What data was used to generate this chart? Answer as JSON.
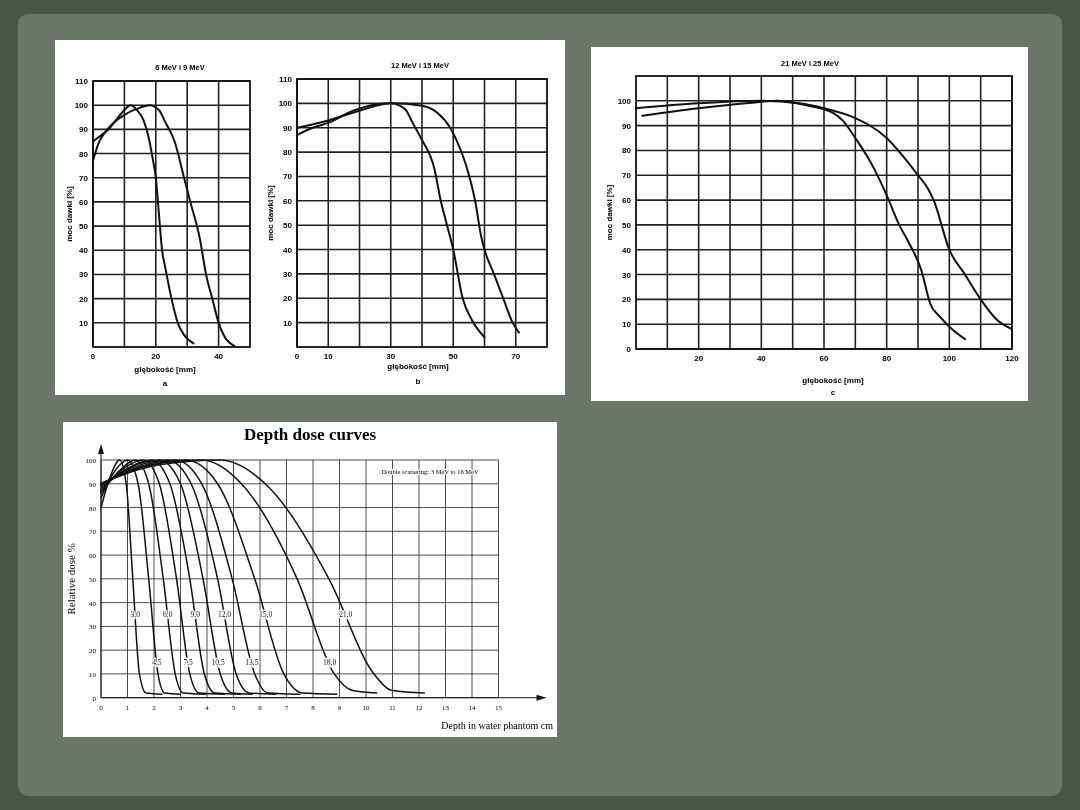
{
  "chart_data": [
    {
      "type": "line",
      "title": "6 MeV i 9 MeV",
      "xlabel": "głębokość [mm]",
      "ylabel": "moc dawki [%]",
      "annotations": [
        "a"
      ],
      "xlim": [
        0,
        50
      ],
      "ylim": [
        0,
        110
      ],
      "xticks": [
        0,
        {
          "value": 10,
          "label": null
        },
        20,
        {
          "value": 30,
          "label": null
        },
        40
      ],
      "yticks": [
        10,
        20,
        30,
        40,
        50,
        60,
        70,
        80,
        90,
        100,
        110
      ],
      "grid": true,
      "series": [
        {
          "color": "#111111",
          "x": [
            0,
            3,
            5,
            8,
            10,
            12,
            14,
            16,
            18,
            19,
            20,
            21,
            22,
            23,
            25,
            27,
            29,
            32
          ],
          "values": [
            85,
            88,
            90,
            95,
            98,
            100,
            98,
            94,
            85,
            78,
            70,
            55,
            40,
            33,
            20,
            10,
            5,
            1.5
          ]
        },
        {
          "color": "#111111",
          "x": [
            0,
            2,
            4,
            6,
            10,
            15,
            18,
            21,
            23,
            26,
            29,
            31,
            34,
            36,
            38,
            40,
            42,
            45
          ],
          "values": [
            77,
            85,
            89,
            92,
            96,
            99,
            100,
            98,
            93,
            85,
            70,
            60,
            45,
            30,
            20,
            10,
            4,
            0.5
          ]
        }
      ]
    },
    {
      "type": "line",
      "title": "12 MeV i 15 MeV",
      "xlabel": "głębokość [mm]",
      "ylabel": "moc dawki [%]",
      "annotations": [
        "b"
      ],
      "xlim": [
        0,
        80
      ],
      "ylim": [
        0,
        110
      ],
      "xticks": [
        0,
        10,
        {
          "value": 20,
          "label": null
        },
        30,
        {
          "value": 40,
          "label": null
        },
        50,
        {
          "value": 60,
          "label": null
        },
        70
      ],
      "yticks": [
        10,
        20,
        30,
        40,
        50,
        60,
        70,
        80,
        90,
        100,
        110
      ],
      "grid": true,
      "series": [
        {
          "color": "#111111",
          "x": [
            0,
            10,
            20,
            30,
            33,
            35,
            37,
            40,
            44,
            46,
            48,
            50,
            53,
            56,
            60
          ],
          "values": [
            90,
            93,
            97,
            100,
            99,
            97,
            92,
            85,
            73,
            60,
            50,
            40,
            20,
            11,
            4
          ]
        },
        {
          "color": "#111111",
          "x": [
            0,
            5,
            10,
            18,
            30,
            40,
            45,
            49,
            51,
            54,
            57,
            59,
            60,
            63,
            66,
            69,
            71
          ],
          "values": [
            87,
            90,
            92,
            97,
            100,
            99,
            96,
            90,
            85,
            75,
            60,
            45,
            40,
            30,
            20,
            10,
            6
          ]
        }
      ]
    },
    {
      "type": "line",
      "title": "21 MeV i 25 MeV",
      "xlabel": "głębokość [mm]",
      "ylabel": "moc dawki [%]",
      "annotations": [
        "c"
      ],
      "xlim": [
        0,
        120
      ],
      "ylim": [
        0,
        110
      ],
      "xticks": [
        {
          "value": 10,
          "label": null
        },
        20,
        {
          "value": 30,
          "label": null
        },
        40,
        {
          "value": 50,
          "label": null
        },
        60,
        {
          "value": 70,
          "label": null
        },
        80,
        {
          "value": 90,
          "label": null
        },
        100,
        {
          "value": 110,
          "label": null
        },
        120
      ],
      "yticks": [
        0,
        10,
        20,
        30,
        40,
        50,
        60,
        70,
        80,
        90,
        100
      ],
      "grid": true,
      "series": [
        {
          "color": "#111111",
          "x": [
            2,
            20,
            35,
            45,
            55,
            63,
            66,
            70,
            75,
            80,
            84,
            87,
            91,
            94,
            97,
            100,
            105
          ],
          "values": [
            94,
            97,
            99,
            100,
            98,
            95,
            92,
            85,
            75,
            62,
            50,
            43,
            32,
            18,
            13,
            9,
            4
          ]
        },
        {
          "color": "#111111",
          "x": [
            0,
            20,
            40,
            52,
            60,
            70,
            80,
            85,
            90,
            93,
            95,
            100,
            105,
            110,
            115,
            120
          ],
          "values": [
            97,
            99,
            100,
            99,
            97,
            93,
            85,
            78,
            70,
            65,
            60,
            40,
            30,
            20,
            12,
            8
          ]
        }
      ]
    },
    {
      "type": "line",
      "title": "Depth dose curves",
      "xlabel": "Depth in water phantom cm",
      "ylabel": "Relative dose %",
      "annotations": [
        "Double scattering: 3 MeV to 16 MeV"
      ],
      "xlim": [
        0,
        15
      ],
      "ylim": [
        0,
        100
      ],
      "xticks": [
        0,
        1,
        2,
        3,
        4,
        5,
        6,
        7,
        8,
        9,
        10,
        11,
        12,
        13,
        14,
        15
      ],
      "yticks": [
        0,
        10,
        20,
        30,
        40,
        50,
        60,
        70,
        80,
        90,
        100
      ],
      "grid": true,
      "series": [
        {
          "name": "3,0",
          "color": "#111111",
          "x": [
            0,
            0.35,
            0.7,
            0.95,
            1.2,
            1.45,
            1.7,
            2.3
          ],
          "values": [
            80,
            93,
            100,
            90,
            50,
            10,
            2,
            1.5
          ]
        },
        {
          "name": "4,5",
          "color": "#111111",
          "x": [
            0,
            0.5,
            1.0,
            1.4,
            1.8,
            2.15,
            2.4,
            3.0
          ],
          "values": [
            84,
            95,
            100,
            90,
            50,
            10,
            2,
            1.5
          ]
        },
        {
          "name": "6,0",
          "color": "#111111",
          "x": [
            0,
            0.65,
            1.3,
            1.8,
            2.35,
            2.8,
            3.1,
            3.95
          ],
          "values": [
            86,
            95,
            100,
            90,
            50,
            10,
            2,
            1.5
          ]
        },
        {
          "name": "7,5",
          "color": "#111111",
          "x": [
            0,
            0.8,
            1.6,
            2.2,
            2.85,
            3.35,
            3.7,
            4.65
          ],
          "values": [
            87,
            96,
            100,
            90,
            50,
            10,
            2,
            1.5
          ]
        },
        {
          "name": "9,0",
          "color": "#111111",
          "x": [
            0,
            0.95,
            1.9,
            2.6,
            3.35,
            3.9,
            4.3,
            5.25
          ],
          "values": [
            88,
            96,
            100,
            90,
            50,
            10,
            2,
            1.5
          ]
        },
        {
          "name": "10,5",
          "color": "#111111",
          "x": [
            0,
            1.1,
            2.2,
            3.0,
            3.85,
            4.5,
            4.95,
            5.7
          ],
          "values": [
            89,
            97,
            100,
            90,
            50,
            10,
            2,
            1.5
          ]
        },
        {
          "name": "12,0",
          "color": "#111111",
          "x": [
            0,
            1.25,
            2.5,
            3.4,
            4.4,
            5.1,
            5.6,
            6.6
          ],
          "values": [
            89,
            97,
            100,
            90,
            50,
            10,
            2,
            1.5
          ]
        },
        {
          "name": "13,5",
          "color": "#111111",
          "x": [
            0,
            1.4,
            2.8,
            3.8,
            4.95,
            5.8,
            6.3,
            7.5
          ],
          "values": [
            90,
            97,
            100,
            90,
            50,
            10,
            2,
            1.5
          ]
        },
        {
          "name": "15,0",
          "color": "#111111",
          "x": [
            0,
            1.6,
            3.2,
            4.4,
            5.8,
            6.9,
            7.6,
            8.9
          ],
          "values": [
            90,
            97,
            100,
            90,
            50,
            10,
            2,
            1.5
          ]
        },
        {
          "name": "18,0",
          "color": "#111111",
          "x": [
            0,
            1.9,
            3.8,
            5.3,
            7.4,
            8.8,
            9.5,
            10.4
          ],
          "values": [
            90,
            98,
            100,
            90,
            50,
            10,
            3,
            2
          ]
        },
        {
          "name": "21,0",
          "color": "#111111",
          "x": [
            0,
            2.2,
            4.5,
            6.2,
            8.6,
            10.3,
            11.0,
            12.2
          ],
          "values": [
            90,
            98,
            100,
            90,
            50,
            10,
            3,
            2
          ]
        }
      ]
    }
  ]
}
